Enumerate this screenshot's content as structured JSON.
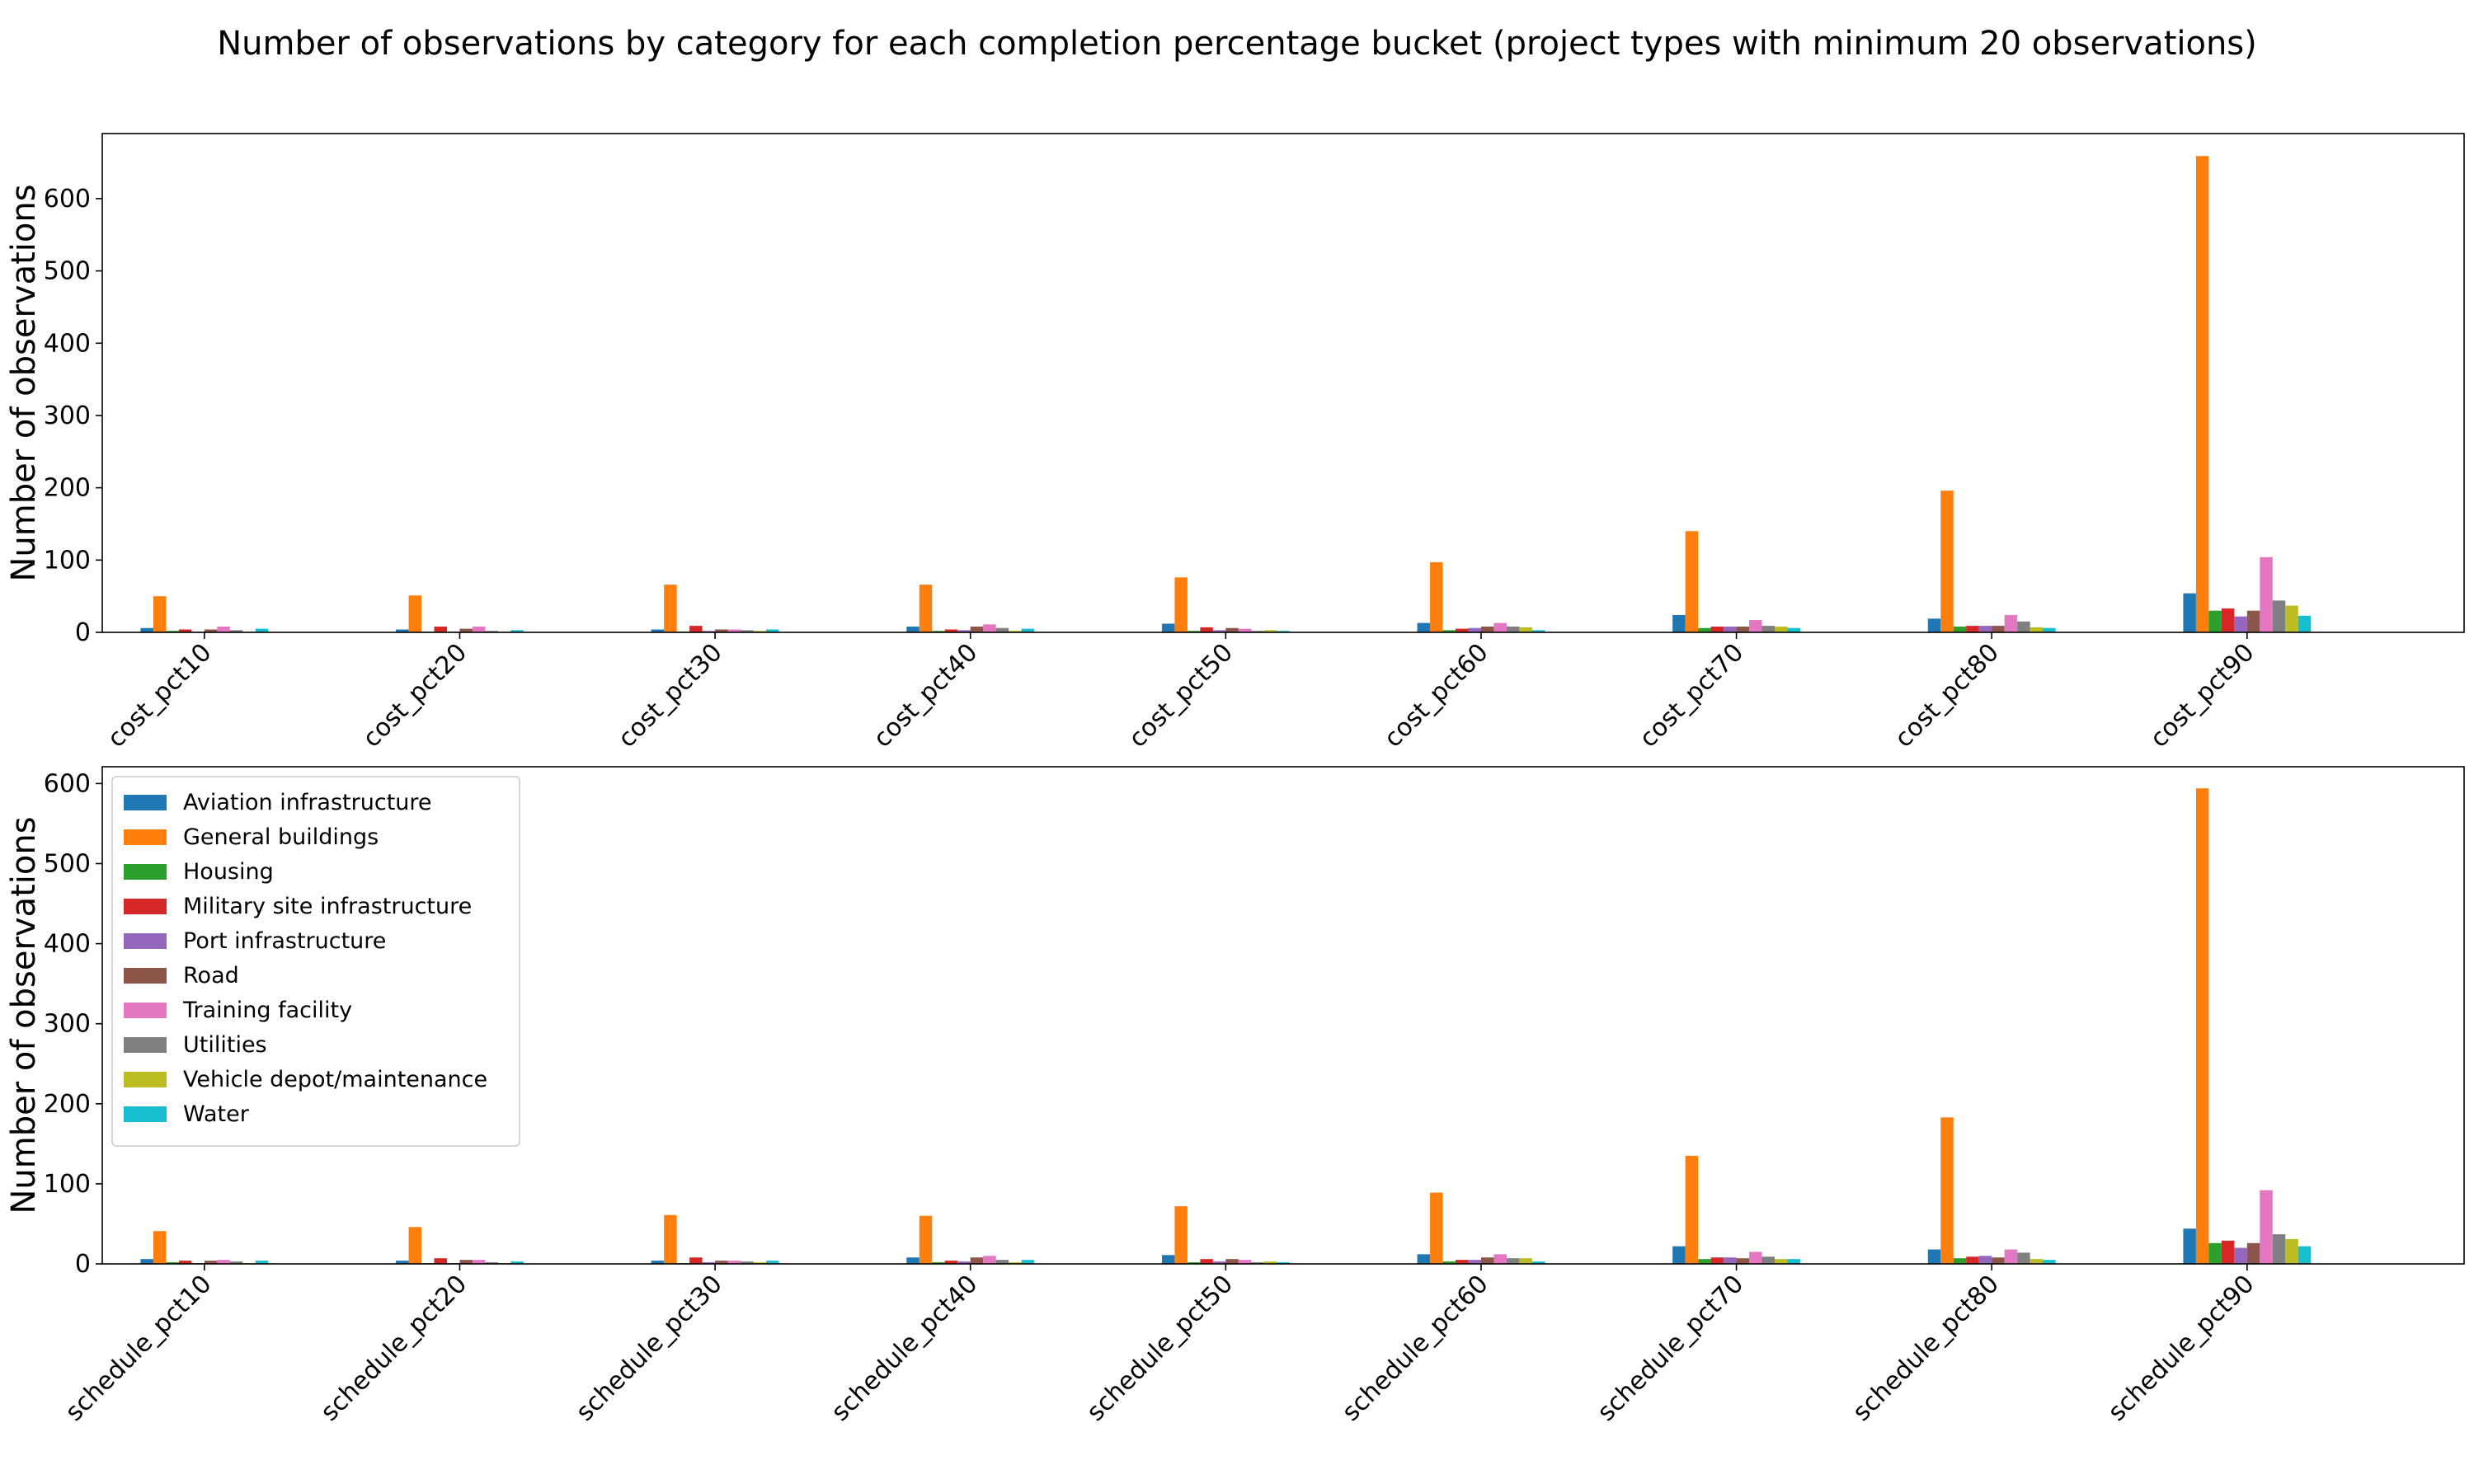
{
  "chart_data": [
    {
      "type": "bar",
      "title": "Number of observations by category for each completion percentage bucket (project types with minimum 20 observations)",
      "xlabel": "",
      "ylabel": "Number of observations",
      "ylim": [
        0,
        690
      ],
      "yticks": [
        0,
        100,
        200,
        300,
        400,
        500,
        600
      ],
      "grid": false,
      "legend": "none",
      "categories": [
        "cost_pct10",
        "cost_pct20",
        "cost_pct30",
        "cost_pct40",
        "cost_pct50",
        "cost_pct60",
        "cost_pct70",
        "cost_pct80",
        "cost_pct90"
      ],
      "series": [
        {
          "name": "Aviation infrastructure",
          "color": "#1f77b4",
          "values": [
            6,
            4,
            4,
            8,
            12,
            13,
            24,
            19,
            54
          ]
        },
        {
          "name": "General buildings",
          "color": "#ff7f0e",
          "values": [
            50,
            51,
            66,
            66,
            76,
            97,
            140,
            196,
            659
          ]
        },
        {
          "name": "Housing",
          "color": "#2ca02c",
          "values": [
            2,
            1,
            1,
            2,
            2,
            3,
            6,
            8,
            30
          ]
        },
        {
          "name": "Military site infrastructure",
          "color": "#d62728",
          "values": [
            4,
            8,
            9,
            4,
            7,
            5,
            8,
            9,
            33
          ]
        },
        {
          "name": "Port infrastructure",
          "color": "#9467bd",
          "values": [
            1,
            1,
            2,
            3,
            3,
            6,
            8,
            9,
            22
          ]
        },
        {
          "name": "Road",
          "color": "#8c564b",
          "values": [
            4,
            5,
            4,
            8,
            6,
            8,
            8,
            9,
            30
          ]
        },
        {
          "name": "Training facility",
          "color": "#e377c2",
          "values": [
            8,
            8,
            4,
            11,
            5,
            13,
            17,
            24,
            104
          ]
        },
        {
          "name": "Utilities",
          "color": "#7f7f7f",
          "values": [
            3,
            2,
            3,
            6,
            2,
            8,
            9,
            15,
            44
          ]
        },
        {
          "name": "Vehicle depot/maintenance",
          "color": "#bcbd22",
          "values": [
            1,
            1,
            2,
            2,
            3,
            7,
            8,
            7,
            37
          ]
        },
        {
          "name": "Water",
          "color": "#17becf",
          "values": [
            5,
            3,
            4,
            5,
            2,
            3,
            6,
            6,
            23
          ]
        }
      ]
    },
    {
      "type": "bar",
      "title": "",
      "xlabel": "",
      "ylabel": "Number of observations",
      "ylim": [
        0,
        621
      ],
      "yticks": [
        0,
        100,
        200,
        300,
        400,
        500,
        600
      ],
      "grid": false,
      "legend": "upper-left",
      "categories": [
        "schedule_pct10",
        "schedule_pct20",
        "schedule_pct30",
        "schedule_pct40",
        "schedule_pct50",
        "schedule_pct60",
        "schedule_pct70",
        "schedule_pct80",
        "schedule_pct90"
      ],
      "series": [
        {
          "name": "Aviation infrastructure",
          "color": "#1f77b4",
          "values": [
            6,
            4,
            4,
            8,
            11,
            12,
            22,
            18,
            44
          ]
        },
        {
          "name": "General buildings",
          "color": "#ff7f0e",
          "values": [
            41,
            46,
            61,
            60,
            72,
            89,
            135,
            183,
            594
          ]
        },
        {
          "name": "Housing",
          "color": "#2ca02c",
          "values": [
            2,
            1,
            1,
            2,
            2,
            3,
            6,
            7,
            26
          ]
        },
        {
          "name": "Military site infrastructure",
          "color": "#d62728",
          "values": [
            4,
            7,
            8,
            4,
            6,
            5,
            8,
            9,
            29
          ]
        },
        {
          "name": "Port infrastructure",
          "color": "#9467bd",
          "values": [
            1,
            1,
            2,
            3,
            3,
            5,
            8,
            10,
            20
          ]
        },
        {
          "name": "Road",
          "color": "#8c564b",
          "values": [
            4,
            5,
            4,
            8,
            6,
            8,
            7,
            8,
            26
          ]
        },
        {
          "name": "Training facility",
          "color": "#e377c2",
          "values": [
            5,
            5,
            4,
            10,
            5,
            12,
            15,
            18,
            92
          ]
        },
        {
          "name": "Utilities",
          "color": "#7f7f7f",
          "values": [
            3,
            2,
            3,
            5,
            2,
            7,
            9,
            14,
            37
          ]
        },
        {
          "name": "Vehicle depot/maintenance",
          "color": "#bcbd22",
          "values": [
            1,
            1,
            2,
            2,
            3,
            7,
            6,
            6,
            31
          ]
        },
        {
          "name": "Water",
          "color": "#17becf",
          "values": [
            4,
            3,
            4,
            5,
            2,
            3,
            6,
            5,
            22
          ]
        }
      ]
    }
  ]
}
